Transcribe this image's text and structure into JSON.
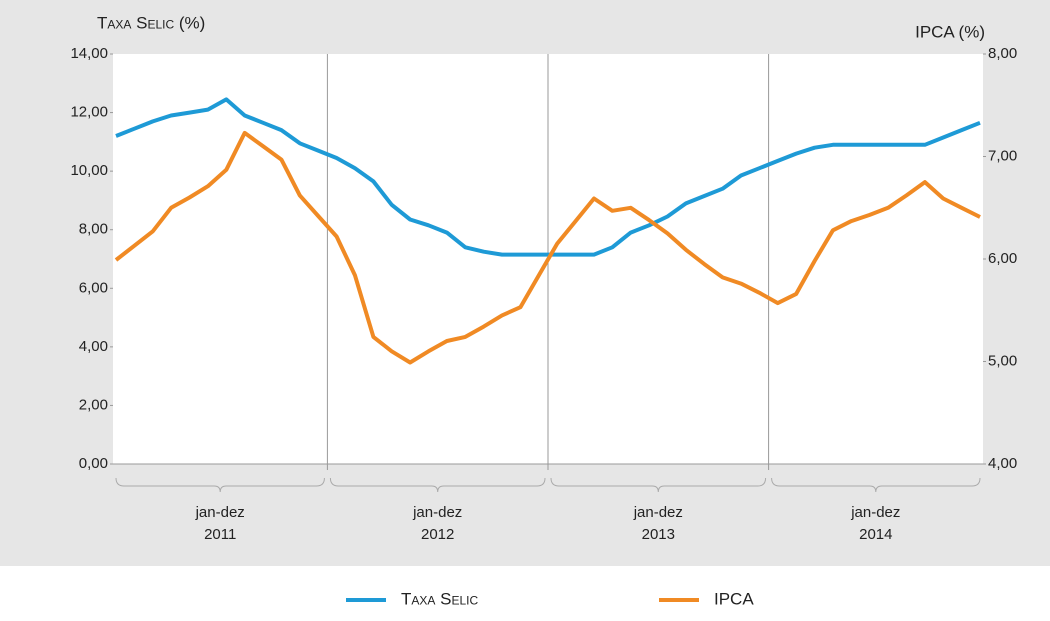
{
  "chart_data": {
    "type": "line",
    "y_label": "Taxa Selic (%)",
    "y2_label": "IPCA (%)",
    "categories": [
      null,
      null,
      null,
      null,
      null,
      null,
      null,
      null,
      null,
      null,
      null,
      null,
      null,
      null,
      null,
      null,
      null,
      null,
      null,
      null,
      null,
      null,
      null,
      null,
      null,
      null,
      null,
      null,
      null,
      null,
      null,
      null,
      null,
      null,
      null,
      null,
      null,
      null,
      null,
      null,
      null,
      null,
      null,
      null,
      null,
      null,
      null,
      null
    ],
    "groups": [
      {
        "period": "jan-dez",
        "year": "2011"
      },
      {
        "period": "jan-dez",
        "year": "2012"
      },
      {
        "period": "jan-dez",
        "year": "2013"
      },
      {
        "period": "jan-dez",
        "year": "2014"
      }
    ],
    "series": [
      {
        "name": "Taxa Selic",
        "color": "#1e9ad6",
        "axis": "y",
        "values": [
          11.2,
          11.45,
          11.7,
          11.9,
          12.0,
          12.1,
          12.45,
          11.9,
          11.65,
          11.4,
          10.95,
          10.7,
          10.45,
          10.1,
          9.65,
          8.85,
          8.35,
          8.15,
          7.9,
          7.4,
          7.25,
          7.15,
          7.15,
          7.15,
          7.15,
          7.15,
          7.15,
          7.4,
          7.9,
          8.15,
          8.45,
          8.9,
          9.15,
          9.4,
          9.85,
          10.1,
          10.35,
          10.6,
          10.8,
          10.9,
          10.9,
          10.9,
          10.9,
          10.9,
          10.9,
          11.15,
          11.4,
          11.65
        ]
      },
      {
        "name": "IPCA",
        "color": "#f08a24",
        "axis": "y2",
        "values": [
          5.99,
          6.13,
          6.27,
          6.5,
          6.6,
          6.71,
          6.87,
          7.23,
          7.1,
          6.97,
          6.62,
          6.42,
          6.22,
          5.84,
          5.24,
          5.1,
          4.99,
          5.1,
          5.2,
          5.24,
          5.34,
          5.45,
          5.53,
          5.84,
          6.15,
          6.37,
          6.59,
          6.47,
          6.5,
          6.38,
          6.25,
          6.09,
          5.95,
          5.82,
          5.76,
          5.67,
          5.57,
          5.66,
          5.98,
          6.28,
          6.37,
          6.43,
          6.5,
          6.62,
          6.75,
          6.59,
          6.5,
          6.41
        ]
      }
    ],
    "ylim": [
      0,
      14
    ],
    "yticks": [
      {
        "value": 0,
        "label": "0,00"
      },
      {
        "value": 2,
        "label": "2,00"
      },
      {
        "value": 4,
        "label": "4,00"
      },
      {
        "value": 6,
        "label": "6,00"
      },
      {
        "value": 8,
        "label": "8,00"
      },
      {
        "value": 10,
        "label": "10,00"
      },
      {
        "value": 12,
        "label": "12,00"
      },
      {
        "value": 14,
        "label": "14,00"
      }
    ],
    "y2lim": [
      4,
      8
    ],
    "y2ticks": [
      {
        "value": 4,
        "label": "4,00"
      },
      {
        "value": 5,
        "label": "5,00"
      },
      {
        "value": 6,
        "label": "6,00"
      },
      {
        "value": 7,
        "label": "7,00"
      },
      {
        "value": 8,
        "label": "8,00"
      }
    ],
    "legend": "bottom"
  }
}
